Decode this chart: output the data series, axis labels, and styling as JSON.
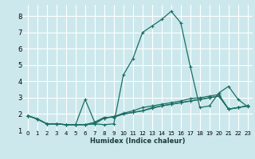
{
  "xlabel": "Humidex (Indice chaleur)",
  "bg_color": "#cce8ec",
  "grid_color": "#ffffff",
  "line_color": "#1a6e64",
  "xlim": [
    -0.5,
    23.5
  ],
  "ylim": [
    1.0,
    8.7
  ],
  "xticks": [
    0,
    1,
    2,
    3,
    4,
    5,
    6,
    7,
    8,
    9,
    10,
    11,
    12,
    13,
    14,
    15,
    16,
    17,
    18,
    19,
    20,
    21,
    22,
    23
  ],
  "yticks": [
    1,
    2,
    3,
    4,
    5,
    6,
    7,
    8
  ],
  "lines": [
    {
      "x": [
        0,
        1,
        2,
        3,
        4,
        5,
        6,
        7,
        8,
        9,
        10,
        11,
        12,
        13,
        14,
        15,
        16,
        17,
        18,
        19,
        20,
        21,
        22,
        23
      ],
      "y": [
        1.9,
        1.7,
        1.4,
        1.4,
        1.35,
        1.35,
        1.35,
        1.4,
        1.35,
        1.4,
        4.4,
        5.4,
        7.0,
        7.4,
        7.8,
        8.3,
        7.6,
        4.9,
        2.4,
        2.5,
        3.3,
        3.7,
        2.9,
        2.45
      ]
    },
    {
      "x": [
        0,
        1,
        2,
        3,
        4,
        5,
        6,
        7,
        8,
        9,
        10,
        11,
        12,
        13,
        14,
        15,
        16,
        17,
        18,
        19,
        20,
        21,
        22,
        23
      ],
      "y": [
        1.9,
        1.7,
        1.4,
        1.4,
        1.35,
        1.35,
        2.9,
        1.5,
        1.8,
        1.8,
        2.0,
        2.1,
        2.2,
        2.4,
        2.5,
        2.6,
        2.7,
        2.8,
        2.9,
        3.0,
        3.1,
        2.3,
        2.4,
        2.5
      ]
    },
    {
      "x": [
        0,
        1,
        2,
        3,
        4,
        5,
        6,
        7,
        8,
        9,
        10,
        11,
        12,
        13,
        14,
        15,
        16,
        17,
        18,
        19,
        20,
        21,
        22,
        23
      ],
      "y": [
        1.9,
        1.7,
        1.4,
        1.4,
        1.35,
        1.35,
        1.35,
        1.5,
        1.75,
        1.85,
        2.0,
        2.1,
        2.2,
        2.35,
        2.5,
        2.6,
        2.7,
        2.8,
        2.9,
        3.0,
        3.1,
        2.3,
        2.4,
        2.5
      ]
    },
    {
      "x": [
        0,
        1,
        2,
        3,
        4,
        5,
        6,
        7,
        8,
        9,
        10,
        11,
        12,
        13,
        14,
        15,
        16,
        17,
        18,
        19,
        20,
        21,
        22,
        23
      ],
      "y": [
        1.9,
        1.7,
        1.4,
        1.4,
        1.35,
        1.35,
        1.35,
        1.4,
        1.75,
        1.85,
        2.05,
        2.2,
        2.4,
        2.5,
        2.6,
        2.7,
        2.8,
        2.95,
        3.0,
        3.1,
        3.2,
        2.3,
        2.4,
        2.5
      ]
    }
  ]
}
